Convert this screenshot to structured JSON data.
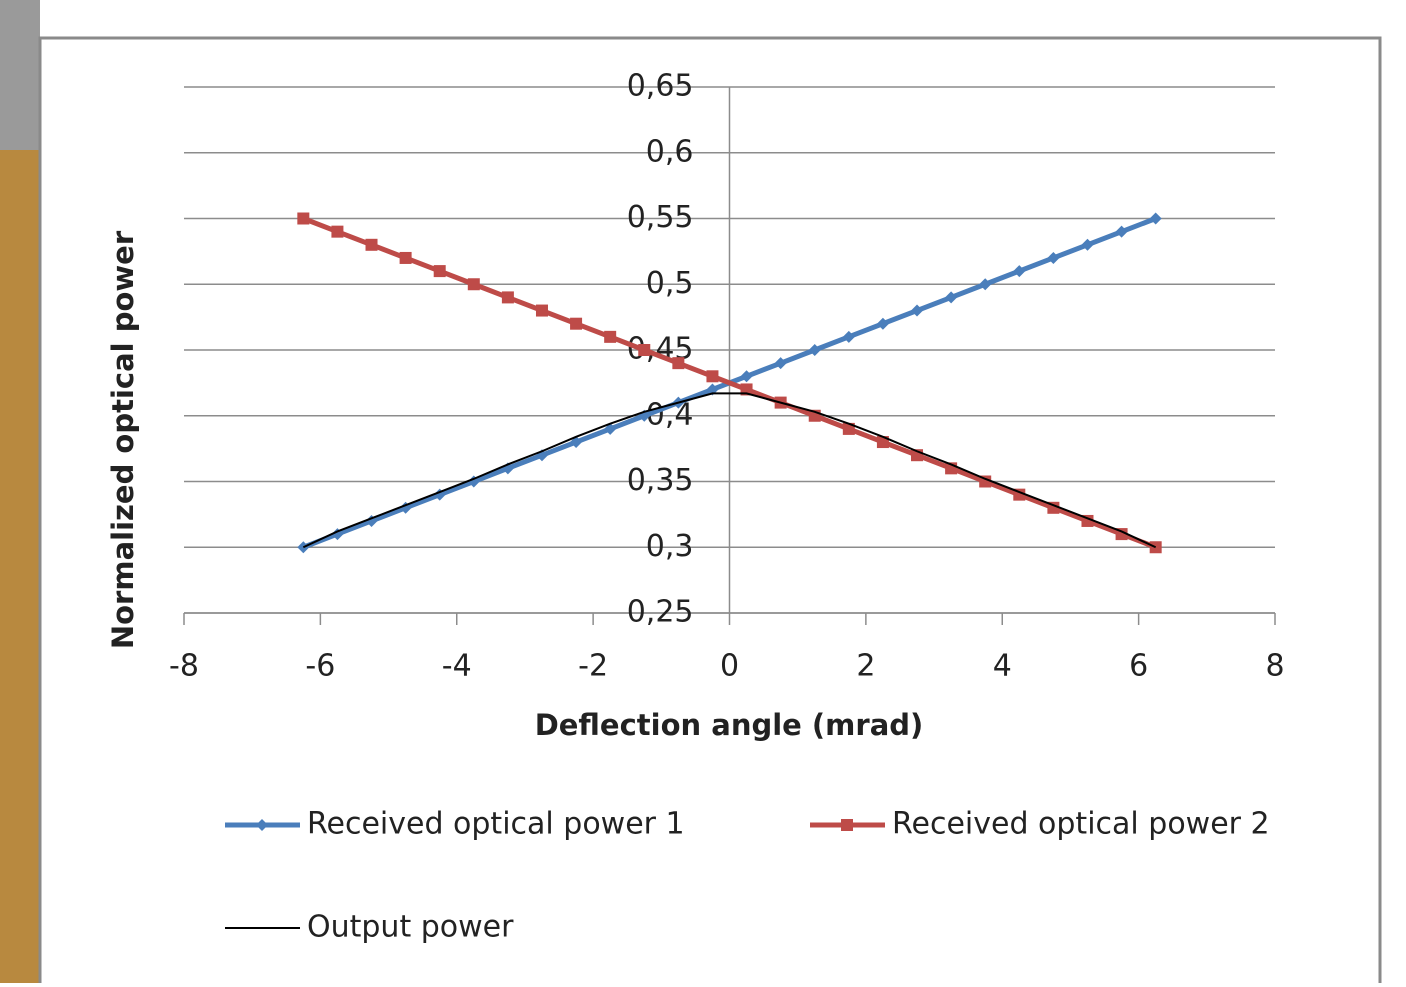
{
  "chart_data": {
    "type": "line",
    "x": [
      -6.25,
      -5.75,
      -5.25,
      -4.75,
      -4.25,
      -3.75,
      -3.25,
      -2.75,
      -2.25,
      -1.75,
      -1.25,
      -0.75,
      -0.25,
      0.25,
      0.75,
      1.25,
      1.75,
      2.25,
      2.75,
      3.25,
      3.75,
      4.25,
      4.75,
      5.25,
      5.75,
      6.25
    ],
    "series": [
      {
        "name": "Received optical power 1",
        "color": "#4a7ebb",
        "marker": "diamond",
        "values": [
          0.3,
          0.31,
          0.32,
          0.33,
          0.34,
          0.35,
          0.36,
          0.37,
          0.38,
          0.39,
          0.4,
          0.41,
          0.42,
          0.43,
          0.44,
          0.45,
          0.46,
          0.47,
          0.48,
          0.49,
          0.5,
          0.51,
          0.52,
          0.53,
          0.54,
          0.55
        ]
      },
      {
        "name": "Received optical power 2",
        "color": "#be4b48",
        "marker": "square",
        "values": [
          0.55,
          0.54,
          0.53,
          0.52,
          0.51,
          0.5,
          0.49,
          0.48,
          0.47,
          0.46,
          0.45,
          0.44,
          0.43,
          0.42,
          0.41,
          0.4,
          0.39,
          0.38,
          0.37,
          0.36,
          0.35,
          0.34,
          0.33,
          0.32,
          0.31,
          0.3
        ]
      },
      {
        "name": "Output power",
        "color": "#000000",
        "marker": "none",
        "values": [
          0.3,
          0.312,
          0.322,
          0.332,
          0.342,
          0.352,
          0.363,
          0.373,
          0.384,
          0.394,
          0.403,
          0.41,
          0.417,
          0.417,
          0.41,
          0.403,
          0.394,
          0.384,
          0.373,
          0.363,
          0.352,
          0.342,
          0.332,
          0.322,
          0.312,
          0.3
        ]
      }
    ],
    "xlabel": "Deflection angle (mrad)",
    "ylabel": "Normalized optical  power",
    "xlim": [
      -8,
      8
    ],
    "xticks": [
      -8,
      -6,
      -4,
      -2,
      0,
      2,
      4,
      6,
      8
    ],
    "ylim": [
      0.25,
      0.65
    ],
    "yticks": [
      {
        "value": 0.25,
        "label": "0,25"
      },
      {
        "value": 0.3,
        "label": "0,3"
      },
      {
        "value": 0.35,
        "label": "0,35"
      },
      {
        "value": 0.4,
        "label": "0,4"
      },
      {
        "value": 0.45,
        "label": "0,45"
      },
      {
        "value": 0.5,
        "label": "0,5"
      },
      {
        "value": 0.55,
        "label": "0,55"
      },
      {
        "value": 0.6,
        "label": "0,6"
      },
      {
        "value": 0.65,
        "label": "0,65"
      }
    ],
    "grid": true,
    "legend": "bottom"
  }
}
